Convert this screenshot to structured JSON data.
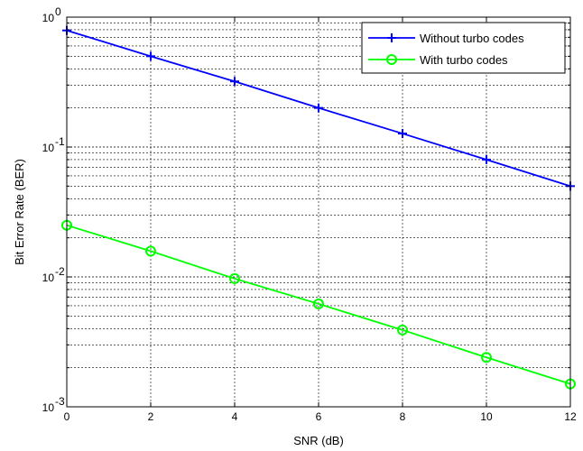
{
  "chart_data": {
    "type": "line",
    "title": "",
    "xlabel": "SNR (dB)",
    "ylabel": "Bit Error Rate (BER)",
    "xlim": [
      0,
      12
    ],
    "ylim": [
      0.001,
      1
    ],
    "yscale": "log",
    "grid": true,
    "legend_position": "top-right",
    "x_ticks": [
      0,
      2,
      4,
      6,
      8,
      10,
      12
    ],
    "x_tick_labels": [
      "0",
      "2",
      "4",
      "6",
      "8",
      "10",
      "12"
    ],
    "y_ticks": [
      1,
      0.1,
      0.01,
      0.001
    ],
    "y_tick_labels": [
      {
        "base": "10",
        "exp": "0"
      },
      {
        "base": "10",
        "exp": "-1"
      },
      {
        "base": "10",
        "exp": "-2"
      },
      {
        "base": "10",
        "exp": "-3"
      }
    ],
    "series": [
      {
        "name": "Without turbo codes",
        "color": "#0000ff",
        "marker": "plus",
        "x": [
          0,
          2,
          4,
          6,
          8,
          10,
          12
        ],
        "y": [
          0.79,
          0.5,
          0.32,
          0.2,
          0.127,
          0.08,
          0.05
        ]
      },
      {
        "name": "With turbo codes",
        "color": "#00ff00",
        "marker": "circle",
        "x": [
          0,
          2,
          4,
          6,
          8,
          10,
          12
        ],
        "y": [
          0.025,
          0.0158,
          0.0097,
          0.0062,
          0.0039,
          0.0024,
          0.0015
        ]
      }
    ]
  }
}
